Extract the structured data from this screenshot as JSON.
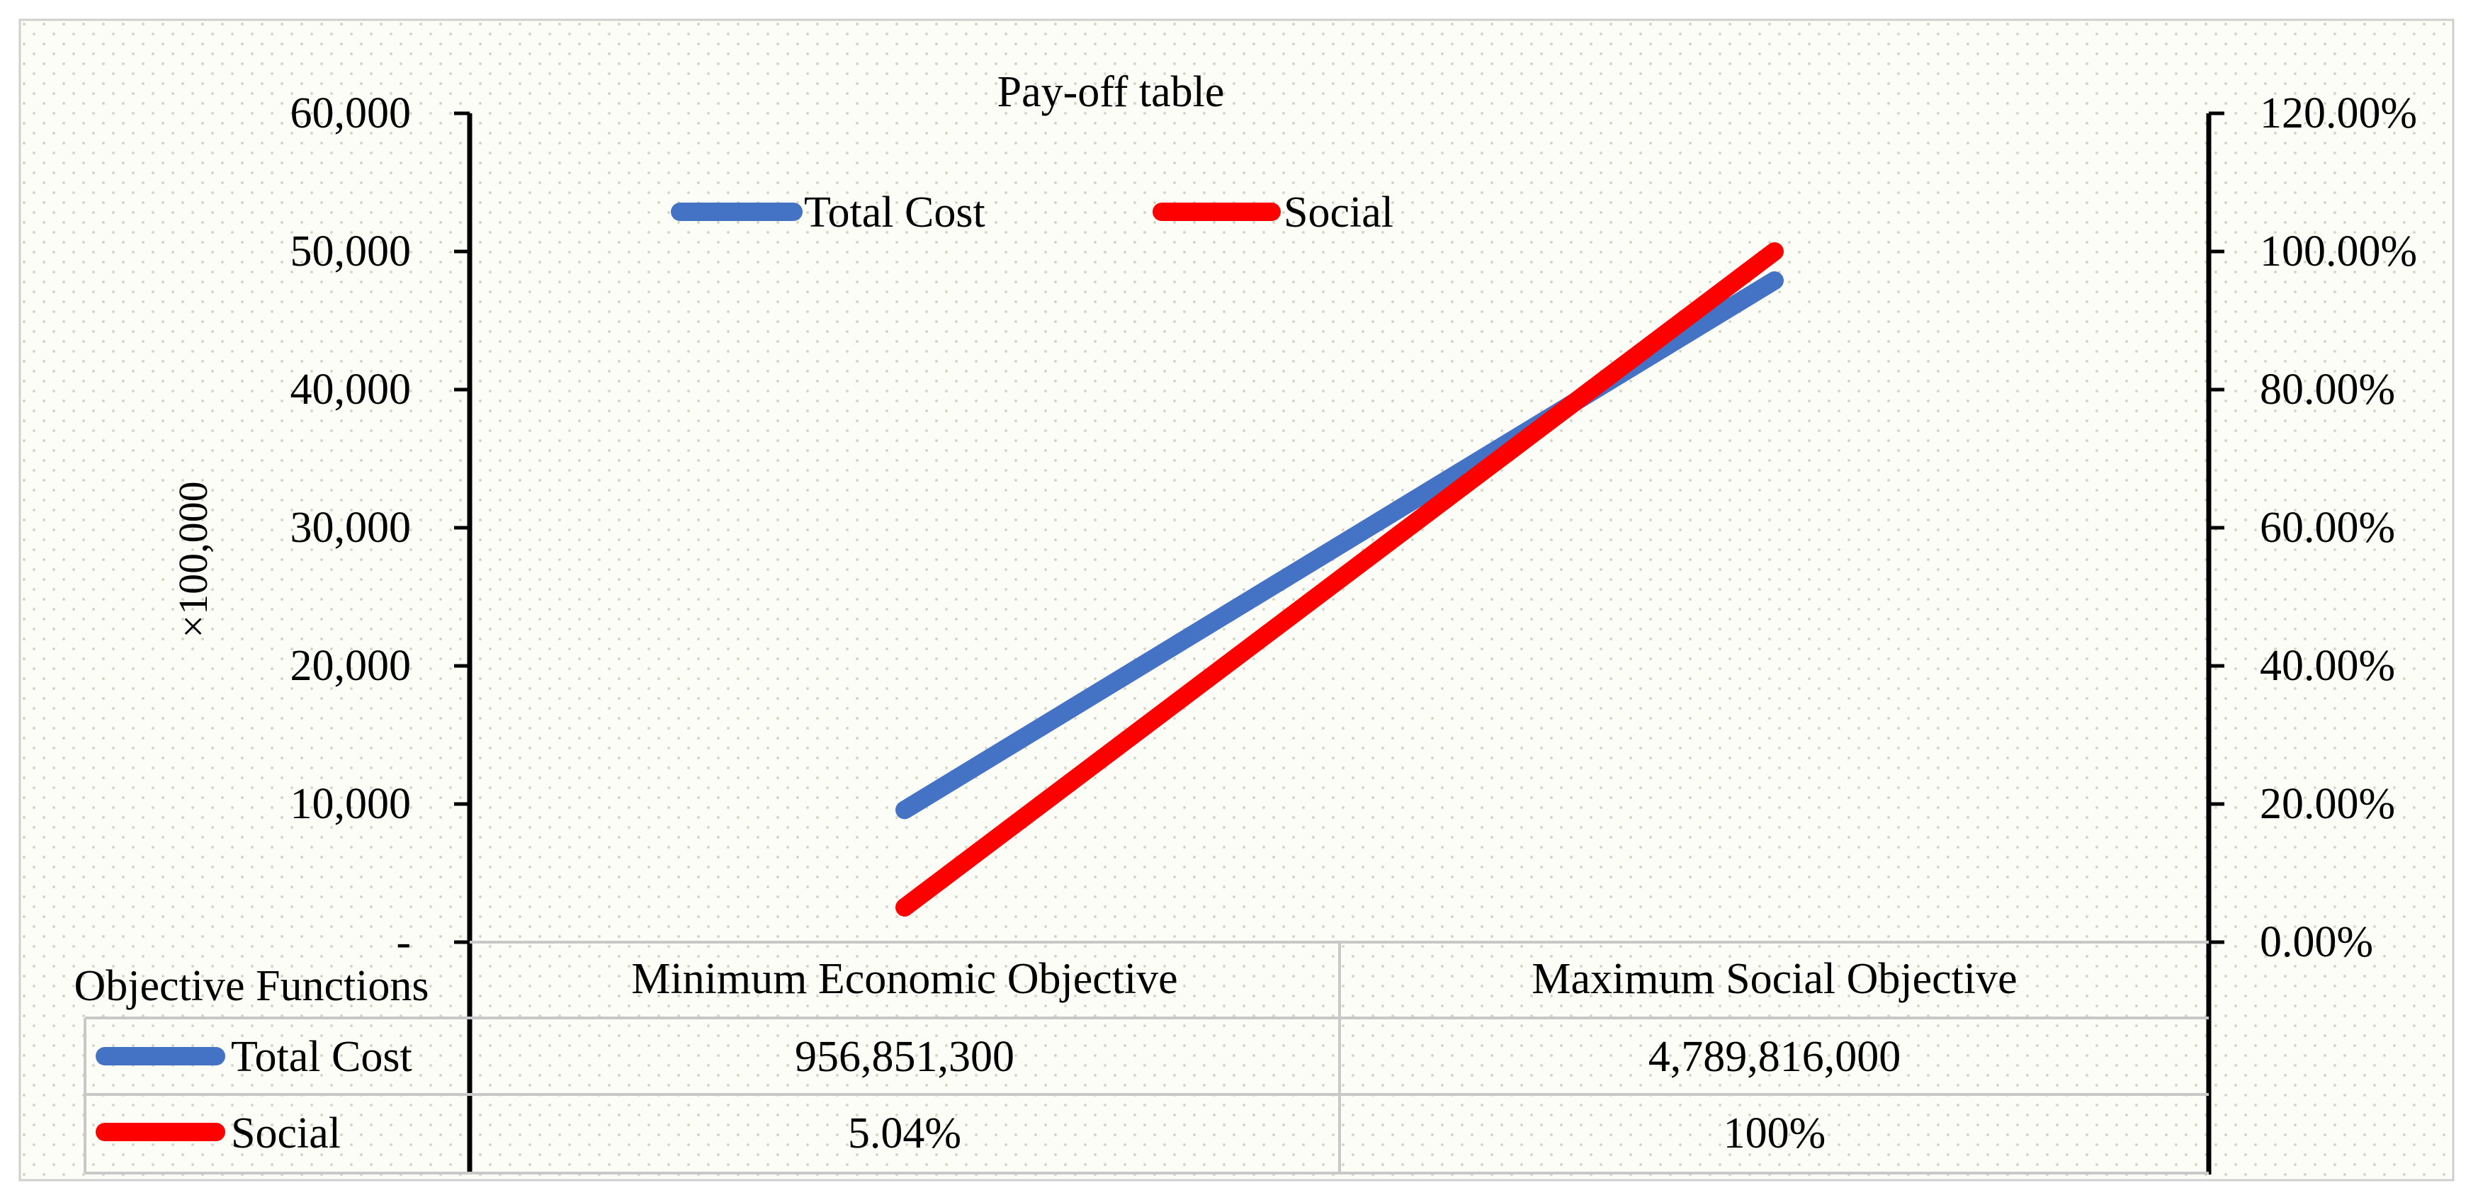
{
  "chart_data": {
    "type": "line",
    "title": "Pay-off  table",
    "categories": [
      "Minimum Economic Objective",
      "Maximum Social Objective"
    ],
    "y_left": {
      "label": "×100,000",
      "range": [
        0,
        60000
      ],
      "ticks": [
        {
          "value": 0,
          "label": "-"
        },
        {
          "value": 10000,
          "label": "10,000"
        },
        {
          "value": 20000,
          "label": "20,000"
        },
        {
          "value": 30000,
          "label": "30,000"
        },
        {
          "value": 40000,
          "label": "40,000"
        },
        {
          "value": 50000,
          "label": "50,000"
        },
        {
          "value": 60000,
          "label": "60,000"
        }
      ]
    },
    "y_right": {
      "range": [
        0,
        1.2
      ],
      "ticks": [
        {
          "value": 0,
          "label": "0.00%"
        },
        {
          "value": 0.2,
          "label": "20.00%"
        },
        {
          "value": 0.4,
          "label": "40.00%"
        },
        {
          "value": 0.6,
          "label": "60.00%"
        },
        {
          "value": 0.8,
          "label": "80.00%"
        },
        {
          "value": 1.0,
          "label": "100.00%"
        },
        {
          "value": 1.2,
          "label": "120.00%"
        }
      ]
    },
    "series": [
      {
        "name": "Total Cost",
        "axis": "left",
        "color": "#4472C4",
        "values": [
          9568.513,
          47898.16
        ]
      },
      {
        "name": "Social",
        "axis": "right",
        "color": "#FF0000",
        "values": [
          0.0504,
          1.0
        ]
      }
    ],
    "legend": {
      "placement": "top"
    },
    "grid": false,
    "data_table": {
      "header_label": "Objective Functions",
      "headers": [
        "Minimum Economic Objective",
        "Maximum Social Objective"
      ],
      "rows": [
        {
          "name": "Total Cost",
          "color": "#4472C4",
          "cells": [
            "956,851,300",
            "4,789,816,000"
          ]
        },
        {
          "name": "Social",
          "color": "#FF0000",
          "cells": [
            "5.04%",
            "100%"
          ]
        }
      ]
    }
  }
}
